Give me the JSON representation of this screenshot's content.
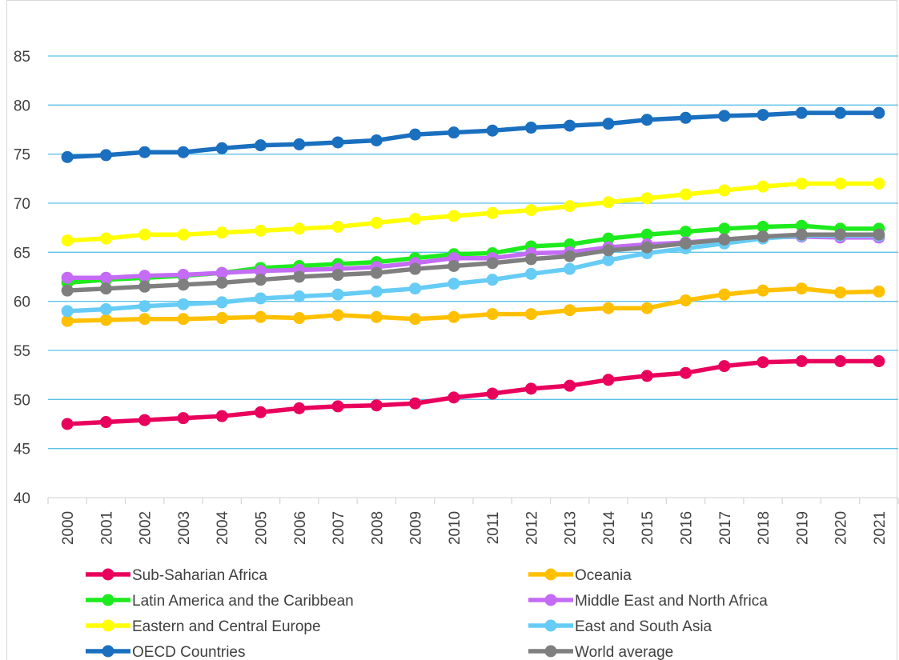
{
  "chart_data": {
    "type": "line",
    "title": "",
    "xlabel": "",
    "ylabel": "",
    "ylim": [
      40,
      85
    ],
    "yticks": [
      "40",
      "45",
      "50",
      "55",
      "60",
      "65",
      "70",
      "75",
      "80",
      "85"
    ],
    "grid": true,
    "legend_position": "bottom",
    "categories": [
      "2000",
      "2001",
      "2002",
      "2003",
      "2004",
      "2005",
      "2006",
      "2007",
      "2008",
      "2009",
      "2010",
      "2011",
      "2012",
      "2013",
      "2014",
      "2015",
      "2016",
      "2017",
      "2018",
      "2019",
      "2020",
      "2021"
    ],
    "series": [
      {
        "name": "Sub-Saharian Africa",
        "color": "#e8005c",
        "values": [
          47.5,
          47.7,
          47.9,
          48.1,
          48.3,
          48.7,
          49.1,
          49.3,
          49.4,
          49.6,
          50.2,
          50.6,
          51.1,
          51.4,
          52.0,
          52.4,
          52.7,
          53.4,
          53.8,
          53.9,
          53.9,
          53.9
        ]
      },
      {
        "name": "Oceania",
        "color": "#ffc000",
        "values": [
          58.0,
          58.1,
          58.2,
          58.2,
          58.3,
          58.4,
          58.3,
          58.6,
          58.4,
          58.2,
          58.4,
          58.7,
          58.7,
          59.1,
          59.3,
          59.3,
          60.1,
          60.7,
          61.1,
          61.3,
          60.9,
          61.0
        ]
      },
      {
        "name": "Latin America and the Caribbean",
        "color": "#1eeb1e",
        "values": [
          61.9,
          62.2,
          62.4,
          62.6,
          62.9,
          63.4,
          63.6,
          63.8,
          64.0,
          64.4,
          64.8,
          64.9,
          65.6,
          65.8,
          66.4,
          66.8,
          67.1,
          67.4,
          67.6,
          67.7,
          67.4,
          67.4
        ]
      },
      {
        "name": "Middle East and North Africa",
        "color": "#c46cf5",
        "values": [
          62.4,
          62.4,
          62.6,
          62.7,
          62.9,
          63.1,
          63.2,
          63.3,
          63.5,
          63.9,
          64.4,
          64.4,
          64.9,
          65.0,
          65.5,
          65.8,
          66.0,
          66.3,
          66.5,
          66.6,
          66.5,
          66.5
        ]
      },
      {
        "name": "Eastern and Central Europe",
        "color": "#ffff00",
        "values": [
          66.2,
          66.4,
          66.8,
          66.8,
          67.0,
          67.2,
          67.4,
          67.6,
          68.0,
          68.4,
          68.7,
          69.0,
          69.3,
          69.7,
          70.1,
          70.5,
          70.9,
          71.3,
          71.7,
          72.0,
          72.0,
          72.0
        ]
      },
      {
        "name": "East and South Asia",
        "color": "#66ccf5",
        "values": [
          59.0,
          59.2,
          59.5,
          59.7,
          59.9,
          60.3,
          60.5,
          60.7,
          61.0,
          61.3,
          61.8,
          62.2,
          62.8,
          63.3,
          64.2,
          64.9,
          65.4,
          65.9,
          66.4,
          66.7,
          66.7,
          66.7
        ]
      },
      {
        "name": "OECD Countries",
        "color": "#1a6fbf",
        "values": [
          74.7,
          74.9,
          75.2,
          75.2,
          75.6,
          75.9,
          76.0,
          76.2,
          76.4,
          77.0,
          77.2,
          77.4,
          77.7,
          77.9,
          78.1,
          78.5,
          78.7,
          78.9,
          79.0,
          79.2,
          79.2,
          79.2
        ]
      },
      {
        "name": "World average",
        "color": "#7f7f7f",
        "values": [
          61.1,
          61.3,
          61.5,
          61.7,
          61.9,
          62.2,
          62.5,
          62.7,
          62.9,
          63.3,
          63.6,
          63.9,
          64.3,
          64.6,
          65.2,
          65.5,
          65.9,
          66.3,
          66.6,
          66.8,
          66.8,
          66.8
        ]
      }
    ]
  }
}
